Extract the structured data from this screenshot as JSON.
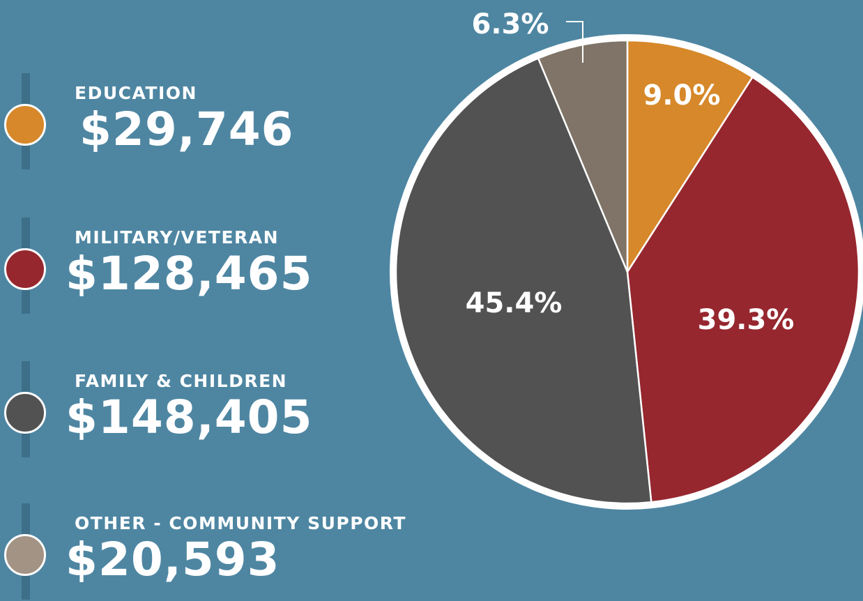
{
  "colors": {
    "background": "#4e86a2",
    "education": "#d6882a",
    "military": "#96272f",
    "family": "#525252",
    "other_wedge": "#7f7467",
    "other_dot": "#a39384"
  },
  "legend": [
    {
      "label": "EDUCATION",
      "amount": "$29,746",
      "color": "#d6882a"
    },
    {
      "label": "MILITARY/VETERAN",
      "amount": "$128,465",
      "color": "#96272f"
    },
    {
      "label": "FAMILY & CHILDREN",
      "amount": "$148,405",
      "color": "#525252"
    },
    {
      "label": "OTHER - COMMUNITY SUPPORT",
      "amount": "$20,593",
      "color": "#a39384"
    }
  ],
  "chart_data": {
    "type": "pie",
    "categories": [
      "EDUCATION",
      "MILITARY/VETERAN",
      "FAMILY & CHILDREN",
      "OTHER - COMMUNITY SUPPORT"
    ],
    "values": [
      29746,
      128465,
      148405,
      20593
    ],
    "percent_labels": [
      "9.0%",
      "39.3%",
      "45.4%",
      "6.3%"
    ],
    "colors": [
      "#d6882a",
      "#96272f",
      "#525252",
      "#7f7467"
    ],
    "start": "12 o'clock, clockwise"
  }
}
